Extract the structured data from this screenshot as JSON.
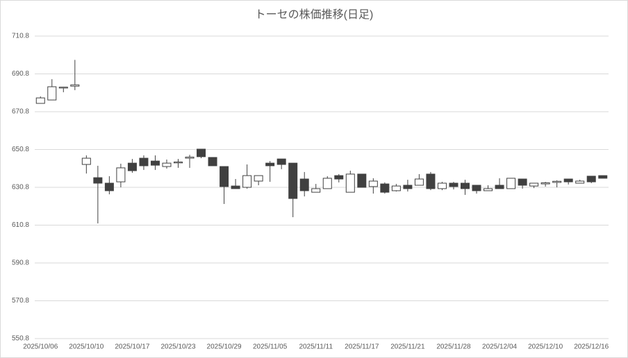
{
  "chart_data": {
    "type": "candlestick",
    "title": "トーセの株価推移(日足)",
    "categories": [
      "2025/10/06",
      null,
      null,
      null,
      "2025/10/10",
      null,
      null,
      null,
      "2025/10/17",
      null,
      null,
      null,
      "2025/10/23",
      null,
      null,
      null,
      "2025/10/29",
      null,
      null,
      null,
      "2025/11/05",
      null,
      null,
      null,
      "2025/11/11",
      null,
      null,
      null,
      "2025/11/17",
      null,
      null,
      null,
      "2025/11/21",
      null,
      null,
      null,
      "2025/11/28",
      null,
      null,
      null,
      "2025/12/04",
      null,
      null,
      null,
      "2025/12/10",
      null,
      null,
      null,
      "2025/12/16",
      null
    ],
    "open": [
      675.2,
      677.0,
      683.3,
      684.3,
      642.9,
      635.9,
      633.0,
      633.7,
      643.6,
      646.2,
      644.7,
      641.8,
      643.7,
      646.2,
      651.0,
      646.6,
      641.8,
      631.5,
      630.8,
      634.1,
      643.6,
      645.8,
      643.6,
      635.2,
      628.2,
      630.1,
      637.0,
      628.2,
      637.8,
      631.2,
      632.6,
      629.0,
      631.9,
      631.9,
      637.8,
      630.1,
      633.0,
      633.0,
      631.9,
      629.0,
      631.9,
      630.1,
      635.2,
      631.5,
      632.6,
      633.4,
      635.2,
      633.0,
      636.7,
      637.0
    ],
    "high": [
      678.9,
      688.0,
      684.0,
      698.2,
      647.7,
      642.2,
      636.7,
      643.3,
      645.8,
      647.7,
      647.7,
      645.5,
      645.8,
      648.0,
      651.0,
      646.6,
      641.8,
      635.2,
      642.9,
      637.0,
      644.7,
      645.8,
      643.6,
      638.9,
      632.6,
      636.7,
      637.8,
      639.6,
      637.8,
      635.6,
      633.4,
      632.6,
      634.8,
      637.8,
      638.9,
      633.7,
      633.7,
      634.8,
      631.9,
      631.9,
      635.6,
      635.6,
      635.2,
      633.0,
      633.7,
      634.5,
      635.2,
      634.8,
      636.7,
      637.0
    ],
    "low": [
      675.2,
      677.0,
      681.1,
      682.2,
      638.1,
      611.7,
      627.1,
      630.8,
      638.5,
      640.0,
      640.0,
      640.7,
      641.1,
      641.1,
      646.2,
      642.2,
      622.0,
      630.1,
      630.1,
      631.9,
      633.7,
      640.4,
      615.0,
      626.0,
      628.2,
      630.1,
      633.4,
      628.2,
      630.8,
      627.5,
      627.5,
      628.6,
      628.6,
      631.9,
      629.3,
      629.3,
      629.7,
      626.8,
      627.5,
      629.0,
      630.1,
      630.1,
      630.1,
      630.4,
      631.2,
      630.8,
      632.3,
      633.0,
      633.0,
      635.6
    ],
    "close": [
      678.1,
      684.0,
      683.8,
      685.0,
      646.2,
      633.0,
      629.0,
      641.1,
      639.6,
      642.2,
      642.5,
      643.6,
      644.2,
      646.8,
      647.0,
      642.2,
      631.2,
      630.1,
      637.0,
      637.0,
      642.2,
      642.9,
      624.9,
      629.0,
      630.1,
      635.6,
      635.2,
      637.8,
      630.8,
      634.1,
      628.2,
      631.5,
      630.1,
      635.2,
      630.1,
      633.0,
      631.2,
      630.1,
      629.0,
      630.1,
      630.1,
      635.6,
      631.9,
      633.0,
      633.2,
      634.0,
      633.7,
      634.1,
      633.7,
      635.6
    ],
    "up_color": "#ffffff",
    "down_color": "#404040",
    "edge_color": "#404040",
    "ylim": [
      550.8,
      710.8
    ],
    "yticks": [
      550.8,
      570.8,
      590.8,
      610.8,
      630.8,
      650.8,
      670.8,
      690.8,
      710.8
    ],
    "grid": true
  }
}
